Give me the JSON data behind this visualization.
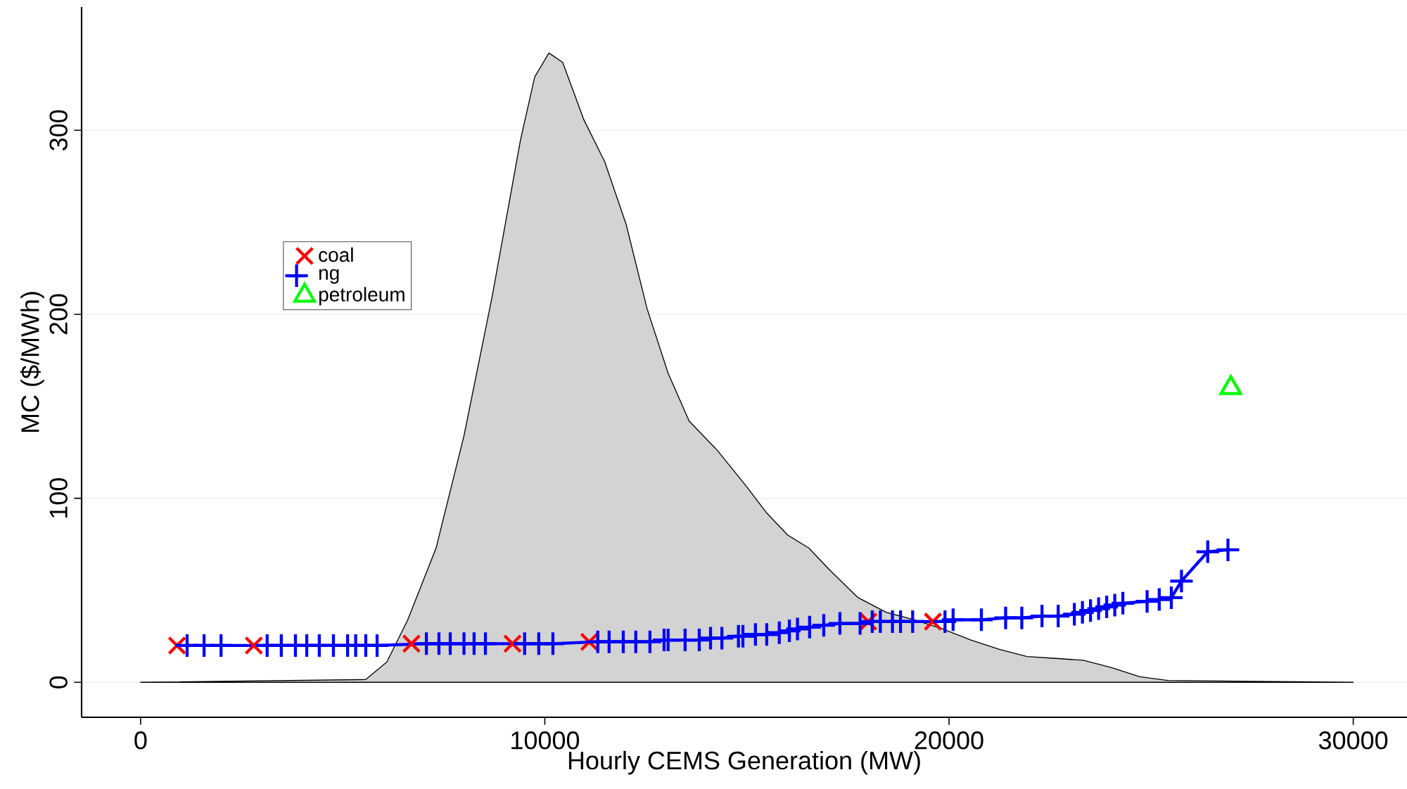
{
  "chart_data": {
    "type": "scatter",
    "xlabel": "Hourly CEMS Generation (MW)",
    "ylabel": "MC ($/MWh)",
    "xlim": [
      -1460,
      31330
    ],
    "ylim": [
      -19,
      367
    ],
    "xticks": [
      0,
      10000,
      20000,
      30000
    ],
    "yticks": [
      0,
      100,
      200,
      300
    ],
    "grid": "y",
    "legend": "top left",
    "series": [
      {
        "type": "area",
        "color": "#d3d3d3",
        "x": [
          0,
          5570,
          6090,
          6610,
          7310,
          8000,
          8700,
          9400,
          9750,
          10100,
          10440,
          10960,
          11480,
          12010,
          12530,
          13050,
          13570,
          14270,
          14970,
          15490,
          16010,
          16530,
          17050,
          17750,
          18450,
          19140,
          19840,
          20540,
          21230,
          21930,
          22630,
          23320,
          24020,
          24720,
          25410,
          30000
        ],
        "values": [
          0,
          1.5,
          11,
          34,
          73,
          134,
          210,
          295,
          329,
          342,
          337,
          306,
          283,
          249,
          203,
          168,
          142,
          126,
          107,
          92,
          80,
          73,
          61,
          46,
          38,
          34,
          29,
          23,
          18,
          14,
          13,
          12,
          8,
          3,
          1,
          0
        ]
      },
      {
        "name": "coal",
        "color": "#ff0000",
        "marker": "cross",
        "x": [
          900,
          2800,
          6700,
          9200,
          11100,
          18000,
          19600
        ],
        "values": [
          20,
          20,
          21,
          21,
          22,
          33,
          33
        ]
      },
      {
        "type": "line",
        "name": "ng",
        "color": "#0000ff",
        "marker": "plus",
        "x": [
          1150,
          1570,
          1990,
          3130,
          3480,
          3830,
          4110,
          4420,
          4770,
          5120,
          5320,
          5570,
          5850,
          7070,
          7380,
          7660,
          8000,
          8250,
          8530,
          9500,
          9850,
          10200,
          11310,
          11590,
          11940,
          12250,
          12600,
          12950,
          13050,
          13470,
          13820,
          14100,
          14380,
          14790,
          14900,
          15210,
          15490,
          15800,
          16050,
          16250,
          16550,
          16900,
          17300,
          17800,
          18100,
          18300,
          18600,
          18800,
          19100,
          19900,
          20100,
          20800,
          21400,
          21800,
          22300,
          22700,
          23100,
          23300,
          23500,
          23700,
          23900,
          24100,
          24300,
          24900,
          25200,
          25500,
          25750,
          26400,
          26900
        ],
        "values": [
          20,
          20,
          20,
          20,
          20,
          20,
          20,
          20,
          20,
          20,
          20,
          20,
          20,
          21,
          21,
          21,
          21,
          21,
          21,
          21,
          21,
          21,
          22,
          22,
          22,
          22,
          22,
          23,
          23,
          23,
          23,
          24,
          24,
          25,
          25,
          26,
          26,
          27,
          28,
          29,
          30,
          31,
          32,
          32,
          33,
          33,
          33,
          33,
          33,
          33,
          34,
          34,
          35,
          35,
          36,
          36,
          37,
          38,
          39,
          40,
          41,
          42,
          43,
          44,
          45,
          46,
          55,
          71,
          72
        ]
      },
      {
        "name": "petroleum",
        "color": "#00ff00",
        "marker": "triangle",
        "x": [
          26970
        ],
        "values": [
          160
        ]
      }
    ]
  }
}
